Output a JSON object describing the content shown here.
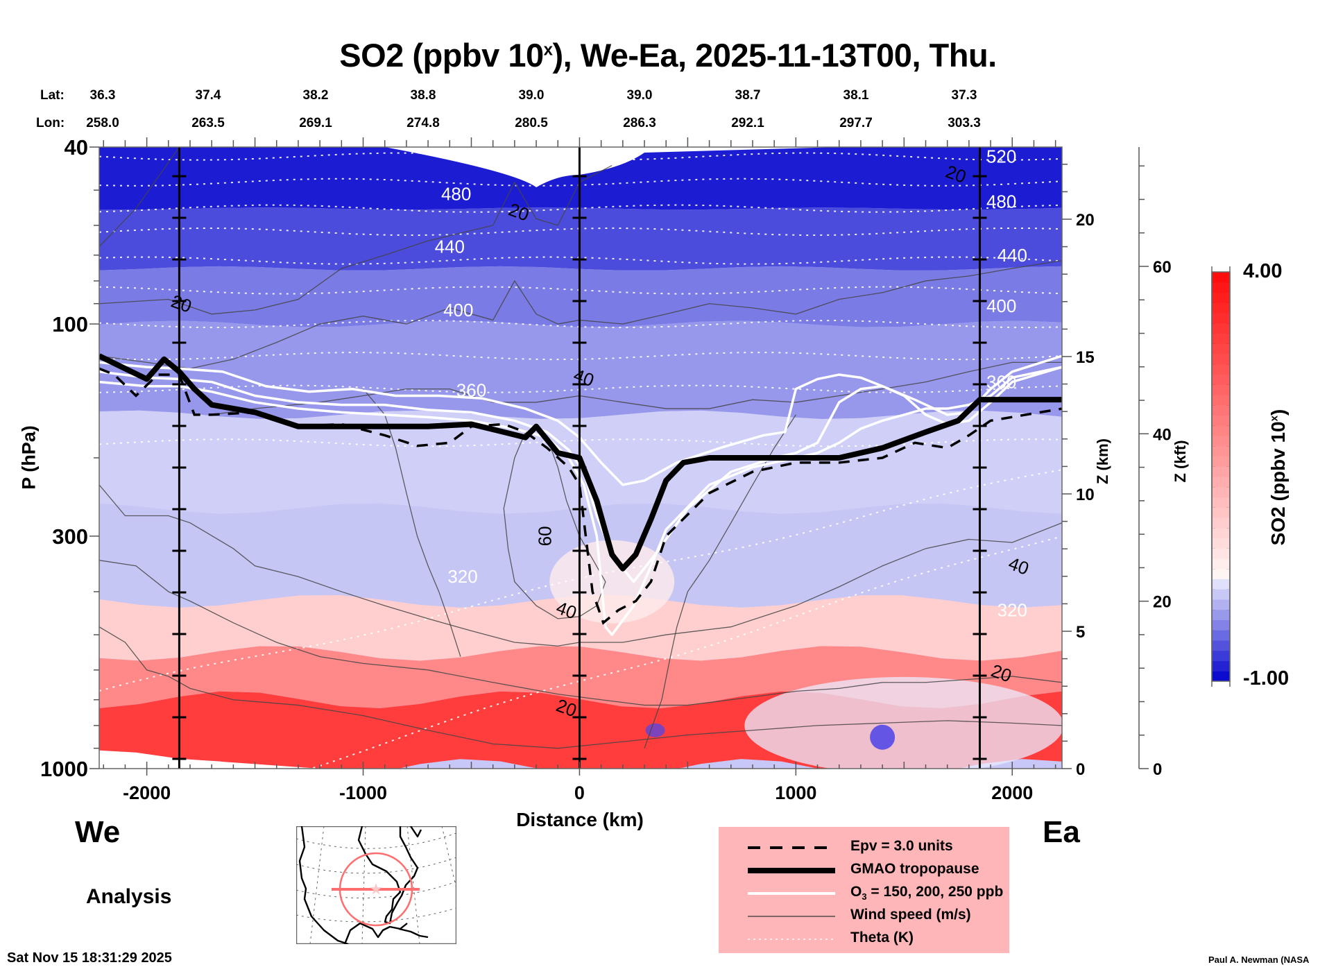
{
  "header": {
    "title_main": "SO2 (ppbv 10",
    "title_sup": "x",
    "title_rest": "), We-Ea, 2025-11-13T00, Thu."
  },
  "latlon": {
    "lat_prefix": "Lat:",
    "lon_prefix": "Lon:",
    "lat": [
      "36.3",
      "37.4",
      "38.2",
      "38.8",
      "39.0",
      "39.0",
      "38.7",
      "38.1",
      "37.3"
    ],
    "lon": [
      "258.0",
      "263.5",
      "269.1",
      "274.8",
      "280.5",
      "286.3",
      "292.1",
      "297.7",
      "303.3"
    ]
  },
  "labels": {
    "west": "We",
    "east": "Ea",
    "analysis": "Analysis",
    "timestamp": "Sat Nov 15 18:31:29 2025",
    "credit": "Paul A. Newman (NASA"
  },
  "legend": {
    "items": [
      {
        "label": "Epv = 3.0 units",
        "style": "dashed-thick"
      },
      {
        "label": "GMAO tropopause",
        "style": "solid-heavy"
      },
      {
        "label_pre": "O",
        "label_sub": "3",
        "label_post": " = 150, 200, 250 ppb",
        "style": "white-solid"
      },
      {
        "label": "Wind speed (m/s)",
        "style": "thin-solid"
      },
      {
        "label": "Theta (K)",
        "style": "white-dotted"
      }
    ],
    "background": "#ffb6b8"
  },
  "colorbar": {
    "max_label": "4.00",
    "min_label": "-1.00",
    "min": -1.0,
    "max": 4.0,
    "title_main": "SO2 (ppbv 10",
    "title_sup": "x",
    "title_end": ")",
    "low_color": "#0000cc",
    "mid_color": "#ffffff",
    "high_color": "#ff0000"
  },
  "chart_data": {
    "type": "heatmap",
    "title": "SO2 (ppbv 10^x), We-Ea, 2025-11-13T00, Thu.",
    "xlabel": "Distance (km)",
    "ylabel": "P (hPa)",
    "y2label": "Z (km)",
    "y3label": "Z (kft)",
    "xlim": [
      -2220,
      2230
    ],
    "ylim_hPa": [
      1000,
      40
    ],
    "y_scale": "log",
    "x_ticks": [
      -2000,
      -1000,
      0,
      1000,
      2000
    ],
    "x_tick_labels": [
      "-2000",
      "-1000",
      "0",
      "1000",
      "2000"
    ],
    "y_ticks": [
      40,
      100,
      300,
      1000
    ],
    "y_tick_labels": [
      "40",
      "100",
      "300",
      "1000"
    ],
    "z_km_ticks": [
      0,
      5,
      10,
      15,
      20
    ],
    "z_km_tick_labels": [
      "0",
      "5",
      "10",
      "15",
      "20"
    ],
    "z_kft_ticks": [
      0,
      20,
      40,
      60
    ],
    "z_kft_tick_labels": [
      "0",
      "20",
      "40",
      "60"
    ],
    "vertical_markers_km": [
      -1850,
      0,
      1850
    ],
    "so2_layers": [
      {
        "p_top": 40,
        "p_bottom": 55,
        "value": -0.85
      },
      {
        "p_top": 55,
        "p_bottom": 75,
        "value": -0.6
      },
      {
        "p_top": 75,
        "p_bottom": 100,
        "value": -0.35
      },
      {
        "p_top": 100,
        "p_bottom": 160,
        "value": -0.2
      },
      {
        "p_top": 160,
        "p_bottom": 260,
        "value": 0.1
      },
      {
        "p_top": 260,
        "p_bottom": 420,
        "value": 0.05
      },
      {
        "p_top": 420,
        "p_bottom": 550,
        "value": 0.9
      },
      {
        "p_top": 550,
        "p_bottom": 700,
        "value": 2.0
      },
      {
        "p_top": 700,
        "p_bottom": 1000,
        "value": 3.2
      }
    ],
    "theta_labels": [
      {
        "text": "520",
        "x_km": 1950,
        "p": 42
      },
      {
        "text": "480",
        "x_km": -570,
        "p": 51
      },
      {
        "text": "480",
        "x_km": 1950,
        "p": 53
      },
      {
        "text": "440",
        "x_km": -600,
        "p": 67
      },
      {
        "text": "440",
        "x_km": 2000,
        "p": 70
      },
      {
        "text": "400",
        "x_km": -560,
        "p": 93
      },
      {
        "text": "400",
        "x_km": 1950,
        "p": 91
      },
      {
        "text": "360",
        "x_km": -500,
        "p": 141
      },
      {
        "text": "360",
        "x_km": 1950,
        "p": 135
      },
      {
        "text": "320",
        "x_km": -540,
        "p": 370
      },
      {
        "text": "320",
        "x_km": 2000,
        "p": 440
      }
    ],
    "wind_labels": [
      {
        "text": "20",
        "x_km": -1840,
        "p": 90
      },
      {
        "text": "20",
        "x_km": -280,
        "p": 56
      },
      {
        "text": "20",
        "x_km": 1740,
        "p": 46
      },
      {
        "text": "40",
        "x_km": 20,
        "p": 132
      },
      {
        "text": "60",
        "x_km": -160,
        "p": 300
      },
      {
        "text": "40",
        "x_km": -60,
        "p": 440
      },
      {
        "text": "40",
        "x_km": 2030,
        "p": 350
      },
      {
        "text": "20",
        "x_km": 1950,
        "p": 610
      },
      {
        "text": "20",
        "x_km": -60,
        "p": 730
      }
    ],
    "series": [
      {
        "name": "GMAO tropopause",
        "x_km": [
          -2220,
          -2100,
          -2000,
          -1920,
          -1850,
          -1780,
          -1700,
          -1500,
          -1300,
          -1000,
          -700,
          -500,
          -350,
          -250,
          -200,
          -150,
          -100,
          0,
          80,
          150,
          200,
          260,
          330,
          400,
          480,
          600,
          800,
          1000,
          1200,
          1400,
          1600,
          1750,
          1850,
          1950,
          2230
        ],
        "p_hPa": [
          118,
          126,
          133,
          120,
          128,
          140,
          152,
          158,
          170,
          170,
          170,
          168,
          175,
          180,
          170,
          182,
          195,
          200,
          250,
          330,
          355,
          330,
          275,
          225,
          205,
          200,
          200,
          200,
          200,
          190,
          175,
          165,
          148,
          148,
          148
        ]
      },
      {
        "name": "Epv = 3.0 units",
        "x_km": [
          -2220,
          -2150,
          -2050,
          -1950,
          -1850,
          -1780,
          -1700,
          -1500,
          -1300,
          -1100,
          -900,
          -750,
          -600,
          -500,
          -350,
          -250,
          -150,
          -50,
          0,
          60,
          110,
          180,
          260,
          330,
          400,
          600,
          800,
          1000,
          1200,
          1400,
          1550,
          1700,
          1800,
          1900,
          2230
        ],
        "p_hPa": [
          126,
          130,
          145,
          130,
          130,
          160,
          160,
          158,
          170,
          168,
          178,
          188,
          185,
          170,
          168,
          175,
          190,
          210,
          230,
          400,
          470,
          440,
          420,
          380,
          300,
          240,
          215,
          205,
          205,
          200,
          185,
          190,
          178,
          165,
          155
        ]
      },
      {
        "name": "O3 = 150 ppb",
        "x_km": [
          -2220,
          -2000,
          -1850,
          -1700,
          -1500,
          -1300,
          -1100,
          -900,
          -700,
          -500,
          -300,
          -150,
          -50,
          20,
          80,
          120,
          150,
          250,
          320,
          400,
          600,
          800,
          1000,
          1100,
          1200,
          1300,
          1400,
          1500,
          1600,
          1700,
          1800,
          1900,
          2000,
          2230
        ],
        "p_hPa": [
          135,
          138,
          138,
          142,
          150,
          155,
          158,
          160,
          162,
          165,
          172,
          180,
          200,
          230,
          300,
          480,
          500,
          430,
          360,
          290,
          230,
          210,
          200,
          195,
          185,
          172,
          165,
          160,
          155,
          155,
          152,
          145,
          132,
          125
        ]
      },
      {
        "name": "O3 = 200 ppb",
        "x_km": [
          -2220,
          -2000,
          -1850,
          -1700,
          -1500,
          -1300,
          -1100,
          -900,
          -700,
          -500,
          -300,
          -150,
          -50,
          20,
          80,
          150,
          250,
          350,
          500,
          700,
          900,
          1000,
          1100,
          1200,
          1300,
          1400,
          1500,
          1600,
          1700,
          1800,
          1900,
          2000,
          2230
        ],
        "p_hPa": [
          128,
          132,
          133,
          135,
          145,
          150,
          152,
          152,
          156,
          158,
          165,
          175,
          192,
          215,
          270,
          330,
          380,
          330,
          260,
          215,
          200,
          195,
          185,
          150,
          140,
          138,
          145,
          160,
          168,
          165,
          150,
          135,
          125
        ]
      },
      {
        "name": "O3 = 250 ppb",
        "x_km": [
          -2220,
          -2000,
          -1850,
          -1650,
          -1450,
          -1250,
          -1050,
          -850,
          -650,
          -450,
          -250,
          -100,
          0,
          100,
          200,
          300,
          450,
          650,
          850,
          950,
          1000,
          1100,
          1200,
          1300,
          1400,
          1550,
          1700,
          1800,
          1900,
          2000,
          2230
        ],
        "p_hPa": [
          122,
          125,
          126,
          128,
          138,
          142,
          140,
          145,
          145,
          147,
          155,
          165,
          180,
          205,
          230,
          225,
          205,
          190,
          178,
          175,
          140,
          133,
          130,
          132,
          138,
          148,
          160,
          158,
          140,
          128,
          118
        ]
      }
    ],
    "theta_lines_K": [
      520,
      500,
      480,
      460,
      440,
      420,
      400,
      380,
      360,
      340,
      320,
      300
    ],
    "legend_position": "bottom-center"
  },
  "inset_map": {
    "description": "North America locator map with red circle and cross-section line"
  }
}
